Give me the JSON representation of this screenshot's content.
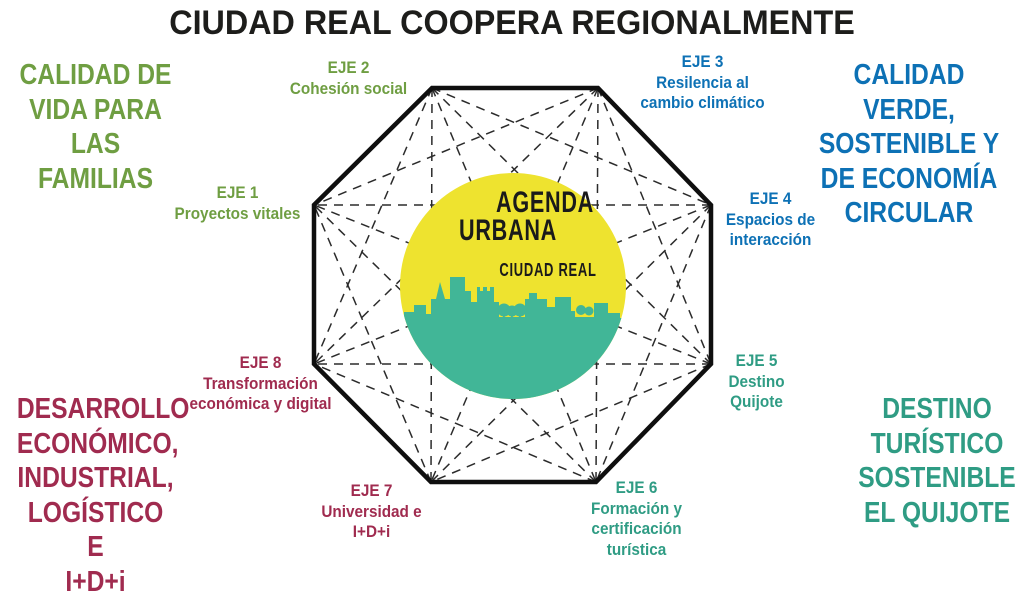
{
  "title": "CIUDAD REAL COOPERA REGIONALMENTE",
  "colors": {
    "green": "#6f9e42",
    "blue": "#0d71b5",
    "maroon": "#a02b4f",
    "teal": "#2f9c84",
    "logo_yellow": "#eee32f",
    "logo_teal": "#41b697",
    "outline_black": "#0f0f0f"
  },
  "corners": {
    "top_left": {
      "text": "CALIDAD DE\nVIDA PARA\nLAS FAMILIAS",
      "color": "green"
    },
    "top_right": {
      "text": "CALIDAD VERDE,\nSOSTENIBLE Y\nDE ECONOMÍA\nCIRCULAR",
      "color": "blue"
    },
    "bottom_left": {
      "text": "DESARROLLO\nECONÓMICO,\nINDUSTRIAL,\nLOGÍSTICO E\nI+D+i",
      "color": "maroon"
    },
    "bottom_right": {
      "text": "DESTINO\nTURÍSTICO\nSOSTENIBLE\nEL QUIJOTE",
      "color": "teal"
    }
  },
  "axes": [
    {
      "id": "EJE 1",
      "label": "Proyectos vitales",
      "color": "green"
    },
    {
      "id": "EJE 2",
      "label": "Cohesión social",
      "color": "green"
    },
    {
      "id": "EJE 3",
      "label": "Resilencia al\ncambio climático",
      "color": "blue"
    },
    {
      "id": "EJE 4",
      "label": "Espacios de\ninteracción",
      "color": "blue"
    },
    {
      "id": "EJE 5",
      "label": "Destino\nQuijote",
      "color": "teal"
    },
    {
      "id": "EJE 6",
      "label": "Formación y\ncertificación turística",
      "color": "teal"
    },
    {
      "id": "EJE 7",
      "label": "Universidad e\nI+D+i",
      "color": "maroon"
    },
    {
      "id": "EJE 8",
      "label": "Transformación\neconómica y digital",
      "color": "maroon"
    }
  ],
  "logo": {
    "line1": "AGENDA",
    "line2": "URBANA",
    "line3": "CIUDAD REAL"
  }
}
